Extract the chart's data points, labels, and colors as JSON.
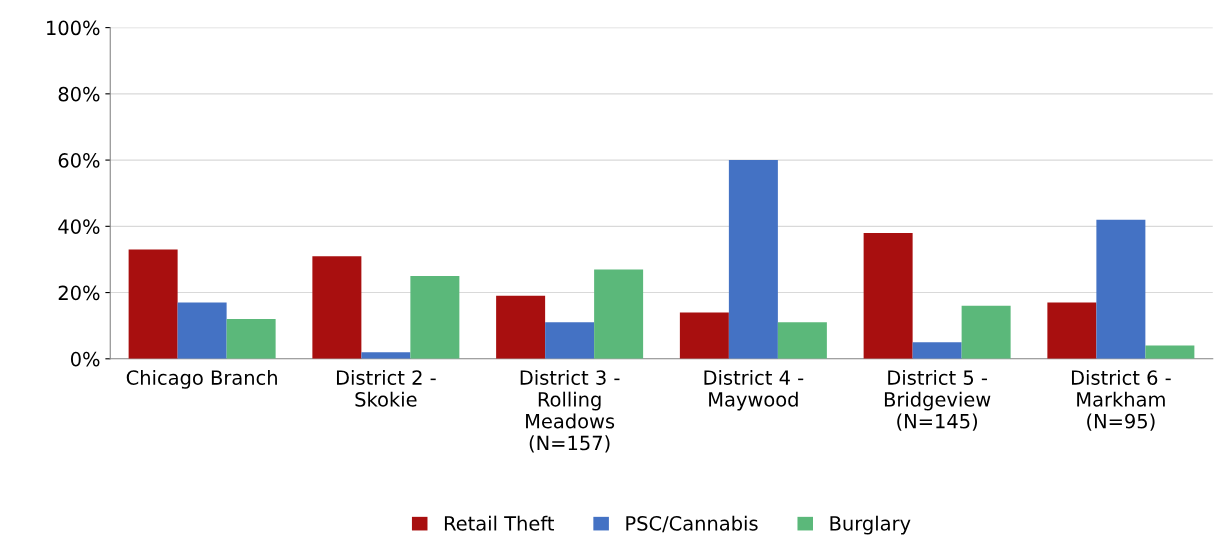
{
  "chart_data": {
    "type": "bar",
    "categories": [
      "Chicago Branch",
      "District 2 -\nSkokie",
      "District 3 -\nRolling\nMeadows\n(N=157)",
      "District 4 -\nMaywood",
      "District 5 -\nBridgeview\n(N=145)",
      "District 6 -\nMarkham\n(N=95)"
    ],
    "series": [
      {
        "name": "Retail Theft",
        "color": "#a80f0f",
        "values": [
          33,
          31,
          19,
          14,
          38,
          17
        ]
      },
      {
        "name": "PSC/Cannabis",
        "color": "#4472c4",
        "values": [
          17,
          2,
          11,
          60,
          5,
          42
        ]
      },
      {
        "name": "Burglary",
        "color": "#5bb87a",
        "values": [
          12,
          25,
          27,
          11,
          16,
          4
        ]
      }
    ],
    "ylim": [
      0,
      100
    ],
    "yticks": [
      {
        "value": 0,
        "label": "0%"
      },
      {
        "value": 20,
        "label": "20%"
      },
      {
        "value": 40,
        "label": "40%"
      },
      {
        "value": 60,
        "label": "60%"
      },
      {
        "value": 80,
        "label": "80%"
      },
      {
        "value": 100,
        "label": "100%"
      }
    ],
    "grid": "y",
    "legend": "bottom"
  }
}
